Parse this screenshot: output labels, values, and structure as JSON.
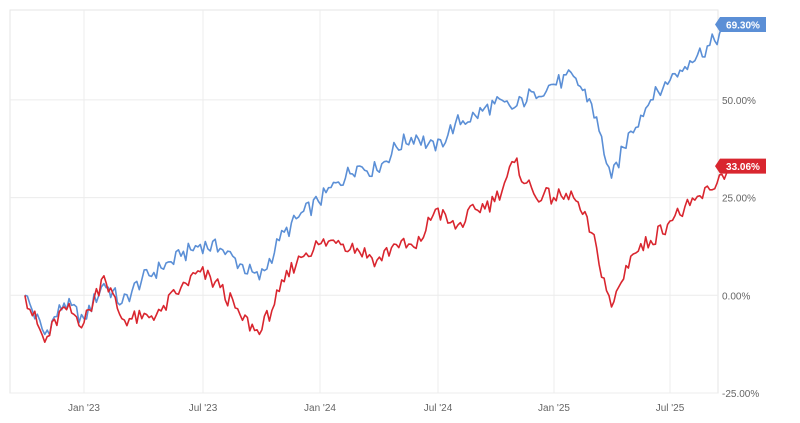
{
  "chart_data": {
    "type": "line",
    "title": "",
    "xlabel": "",
    "ylabel": "",
    "x_tick_labels": [
      "Jan '23",
      "Jul '23",
      "Jan '24",
      "Jul '24",
      "Jan '25",
      "Jul '25"
    ],
    "y_ticks": [
      {
        "value": 50,
        "label": "50.00%"
      },
      {
        "value": 25,
        "label": "25.00%"
      },
      {
        "value": 0,
        "label": "0.00%"
      },
      {
        "value": -25,
        "label": "-25.00%"
      }
    ],
    "ylim": [
      -25,
      73
    ],
    "grid": true,
    "y_axis_side": "right",
    "x": [
      "2022-10-01",
      "2022-11-01",
      "2022-12-01",
      "2023-01-01",
      "2023-02-01",
      "2023-03-01",
      "2023-04-01",
      "2023-05-01",
      "2023-06-01",
      "2023-07-01",
      "2023-08-01",
      "2023-09-01",
      "2023-10-01",
      "2023-11-01",
      "2023-12-01",
      "2024-01-01",
      "2024-02-01",
      "2024-03-01",
      "2024-04-01",
      "2024-05-01",
      "2024-06-01",
      "2024-07-01",
      "2024-08-01",
      "2024-09-01",
      "2024-10-01",
      "2024-11-01",
      "2024-12-01",
      "2025-01-01",
      "2025-02-01",
      "2025-03-01",
      "2025-04-01",
      "2025-05-01",
      "2025-06-01",
      "2025-07-01",
      "2025-08-01",
      "2025-09-01",
      "2025-10-01"
    ],
    "series": [
      {
        "color": "#5b8fd6",
        "end_label": "69.30%",
        "values": [
          0,
          -10,
          -2,
          -6,
          3,
          -2,
          4,
          7,
          10,
          13,
          12,
          8,
          4,
          14,
          20,
          24,
          29,
          33,
          32,
          38,
          41,
          37,
          44,
          46,
          49,
          48,
          52,
          54,
          56,
          49,
          30,
          42,
          50,
          55,
          60,
          64,
          69.3
        ]
      },
      {
        "color": "#d9262f",
        "end_label": "33.06%",
        "values": [
          0,
          -12,
          -3,
          -7,
          5,
          -6,
          -6,
          -4,
          2,
          6,
          2,
          -5,
          -10,
          1,
          10,
          13,
          14,
          12,
          9,
          13,
          12,
          22,
          17,
          22,
          24,
          34,
          26,
          25,
          25,
          16,
          -3,
          10,
          14,
          19,
          23,
          27,
          33.06
        ]
      }
    ]
  }
}
